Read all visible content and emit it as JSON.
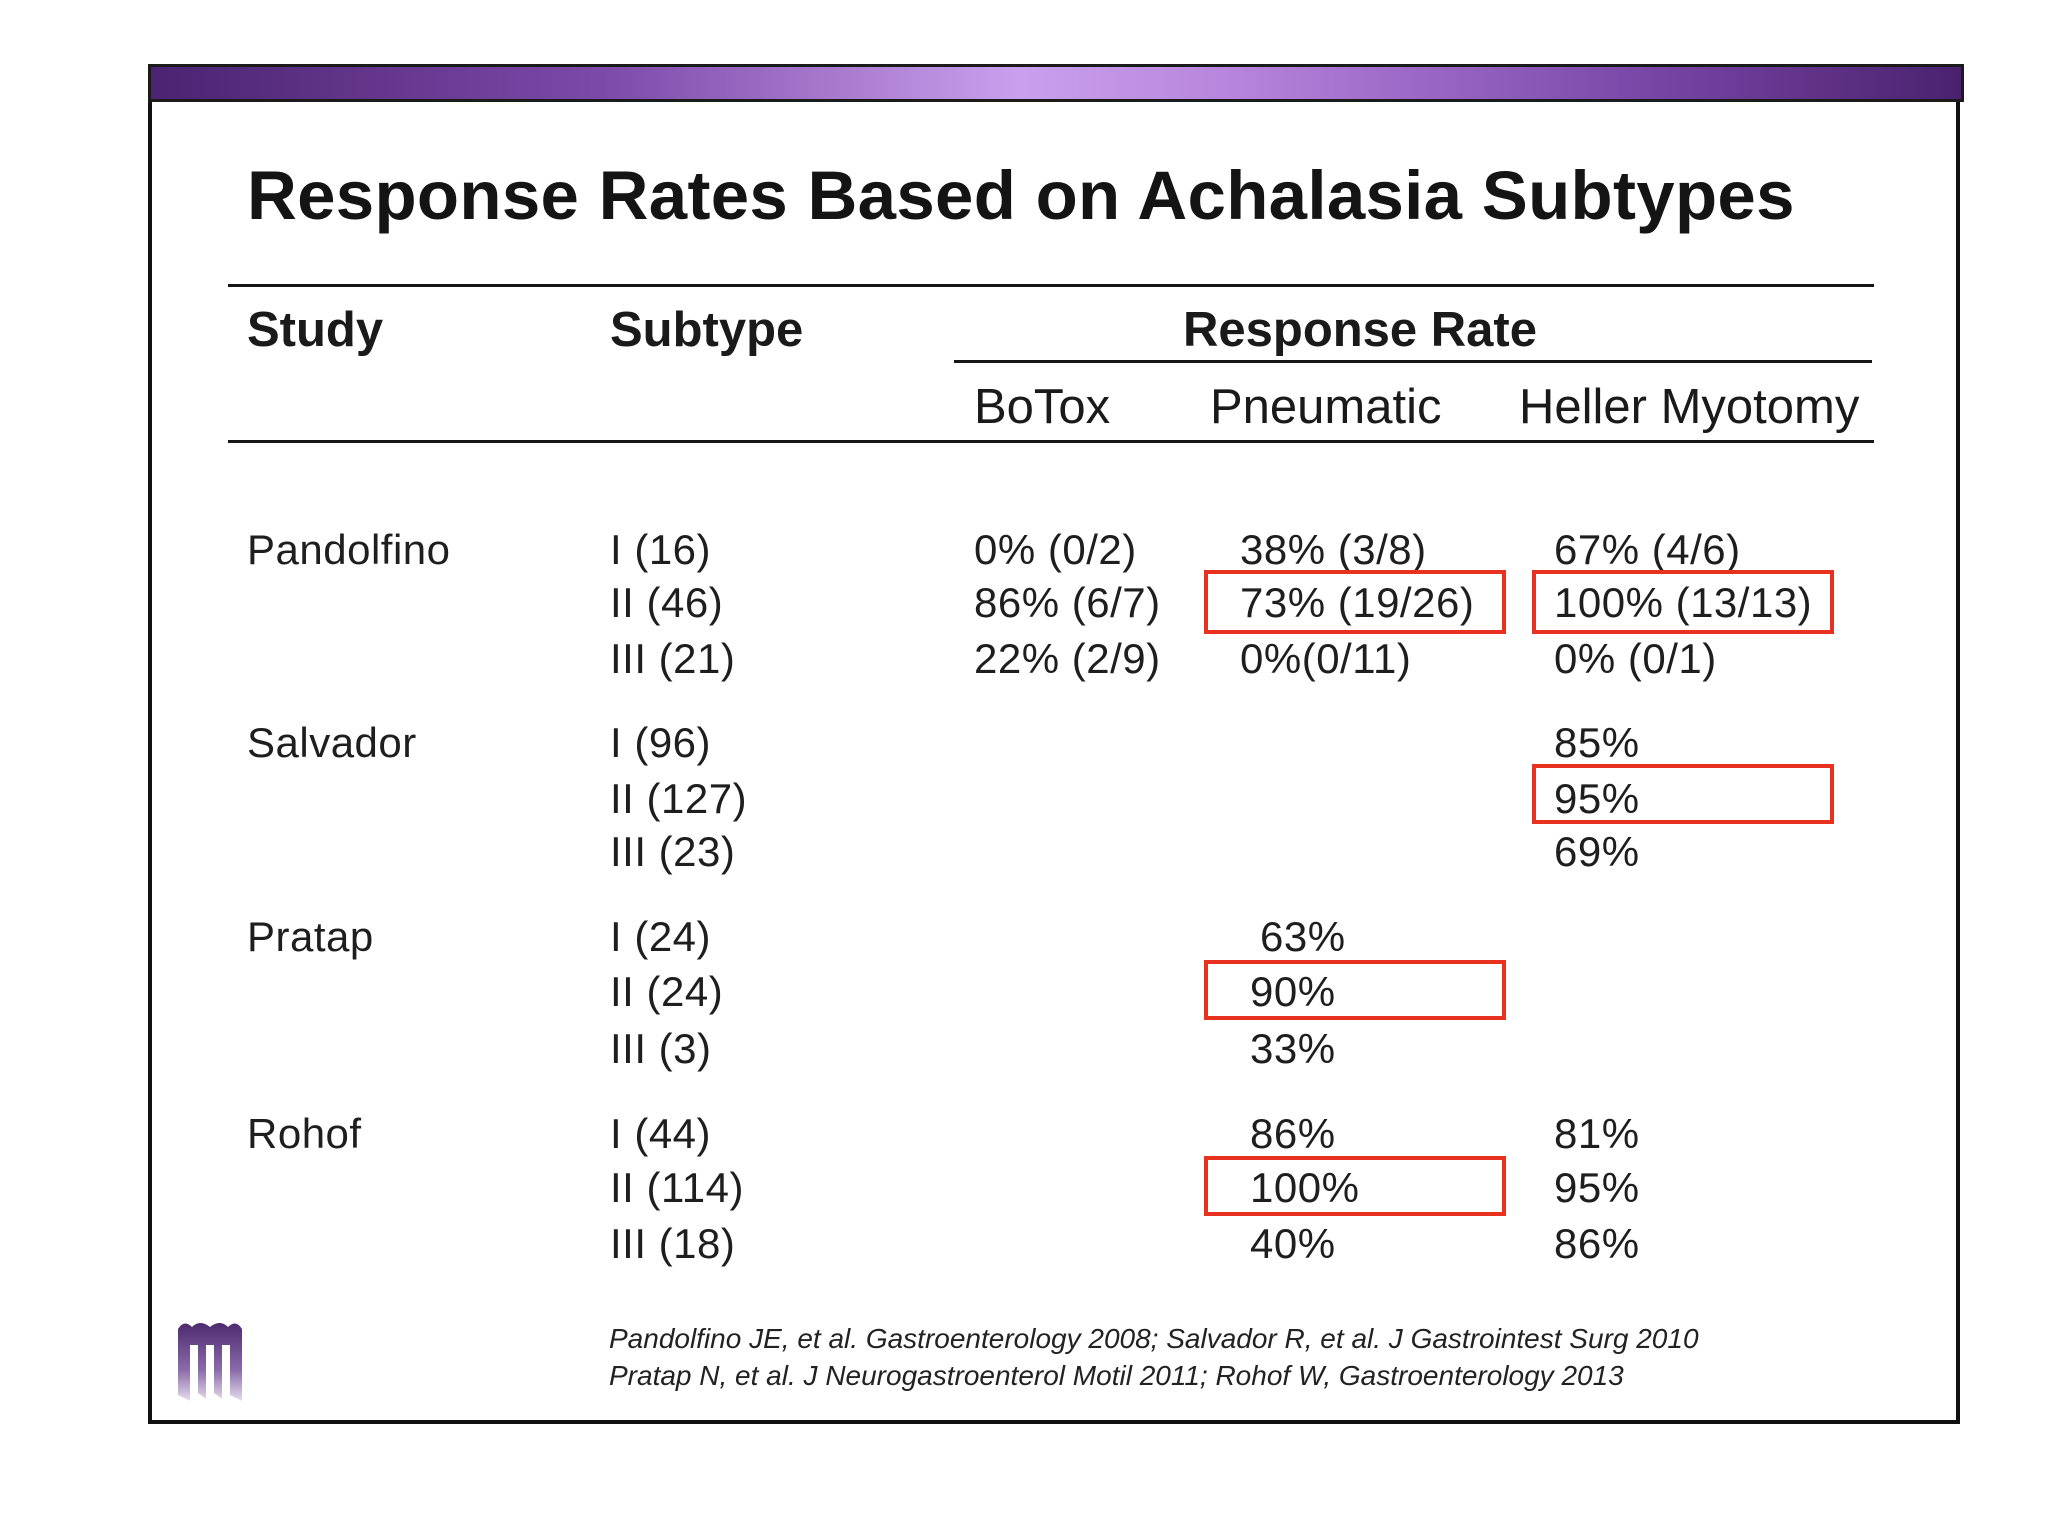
{
  "title": "Response Rates Based on Achalasia Subtypes",
  "headers": {
    "study": "Study",
    "subtype": "Subtype",
    "response_rate": "Response Rate",
    "botox": "BoTox",
    "pneumatic": "Pneumatic",
    "heller": "Heller Myotomy"
  },
  "rows": [
    {
      "study": "Pandolfino",
      "subtype": "I (16)",
      "botox": "0% (0/2)",
      "pneumatic": "38% (3/8)",
      "heller": "67% (4/6)"
    },
    {
      "subtype": "II (46)",
      "botox": "86% (6/7)",
      "pneumatic": "73% (19/26)",
      "heller": "100% (13/13)"
    },
    {
      "subtype": "III (21)",
      "botox": "22% (2/9)",
      "pneumatic": "0%(0/11)",
      "heller": "0% (0/1)"
    },
    {
      "study": "Salvador",
      "subtype": "I (96)",
      "heller": "85%"
    },
    {
      "subtype": "II (127)",
      "heller": "95%"
    },
    {
      "subtype": "III (23)",
      "heller": "69%"
    },
    {
      "study": "Pratap",
      "subtype": "I (24)",
      "pneumatic": "63%"
    },
    {
      "subtype": "II (24)",
      "pneumatic": "90%"
    },
    {
      "subtype": "III (3)",
      "pneumatic": "33%"
    },
    {
      "study": "Rohof",
      "subtype": "I (44)",
      "pneumatic": "86%",
      "heller": "81%"
    },
    {
      "subtype": "II (114)",
      "pneumatic": "100%",
      "heller": "95%"
    },
    {
      "subtype": "III (18)",
      "pneumatic": "40%",
      "heller": "86%"
    }
  ],
  "highlight_color": "#e8321f",
  "citation": {
    "line1": "Pandolfino JE, et al. Gastroenterology 2008; Salvador R, et al. J Gastrointest Surg 2010",
    "line2": "Pratap N, et al. J Neurogastroenterol Motil 2011; Rohof W, Gastroenterology 2013"
  },
  "logo_icon": "institution-logo-icon"
}
